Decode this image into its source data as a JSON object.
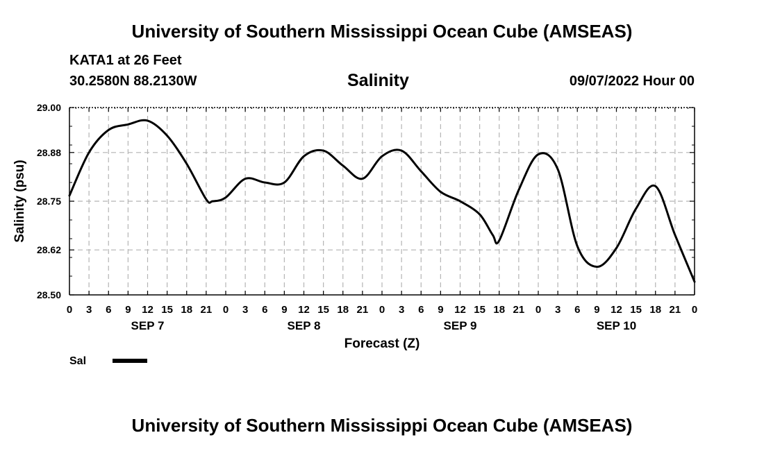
{
  "header": {
    "title": "University of Southern Mississippi Ocean Cube (AMSEAS)",
    "station": "KATA1 at 26 Feet",
    "location": "30.2580N  88.2130W",
    "parameter": "Salinity",
    "issued": "09/07/2022 Hour 00"
  },
  "footer": {
    "title": "University of Southern Mississippi Ocean Cube (AMSEAS)"
  },
  "chart_data": {
    "type": "line",
    "title": "Salinity",
    "xlabel": "Forecast (Z)",
    "ylabel": "Salinity (psu)",
    "xlim": [
      0,
      96
    ],
    "ylim": [
      28.5,
      29.0
    ],
    "yticks": [
      28.5,
      28.62,
      28.75,
      28.88,
      29.0
    ],
    "ytick_labels": [
      "28.50",
      "28.62",
      "28.75",
      "28.88",
      "29.00"
    ],
    "xtick_labels": [
      "0",
      "3",
      "6",
      "9",
      "12",
      "15",
      "18",
      "21",
      "0",
      "3",
      "6",
      "9",
      "12",
      "15",
      "18",
      "21",
      "0",
      "3",
      "6",
      "9",
      "12",
      "15",
      "18",
      "21",
      "0",
      "3",
      "6",
      "9",
      "12",
      "15",
      "18",
      "21",
      "0"
    ],
    "date_labels": [
      {
        "label": "SEP 7",
        "hour": 12
      },
      {
        "label": "SEP 8",
        "hour": 36
      },
      {
        "label": "SEP 9",
        "hour": 60
      },
      {
        "label": "SEP 10",
        "hour": 84
      }
    ],
    "grid": true,
    "legend": {
      "position": "bottom-left",
      "label": "Sal",
      "color": "#000000"
    },
    "series": [
      {
        "name": "Sal",
        "color": "#000000",
        "x": [
          0,
          3,
          6,
          9,
          12,
          15,
          18,
          21,
          22,
          24,
          27,
          30,
          33,
          36,
          39,
          42,
          45,
          48,
          51,
          54,
          57,
          60,
          63,
          65,
          66,
          69,
          72,
          75,
          78,
          81,
          84,
          87,
          90,
          93,
          96
        ],
        "y": [
          28.765,
          28.88,
          28.94,
          28.955,
          28.965,
          28.925,
          28.85,
          28.755,
          28.75,
          28.76,
          28.81,
          28.8,
          28.8,
          28.87,
          28.885,
          28.845,
          28.81,
          28.87,
          28.885,
          28.83,
          28.775,
          28.75,
          28.715,
          28.66,
          28.645,
          28.78,
          28.875,
          28.835,
          28.63,
          28.575,
          28.625,
          28.73,
          28.79,
          28.66,
          28.535
        ]
      }
    ]
  }
}
